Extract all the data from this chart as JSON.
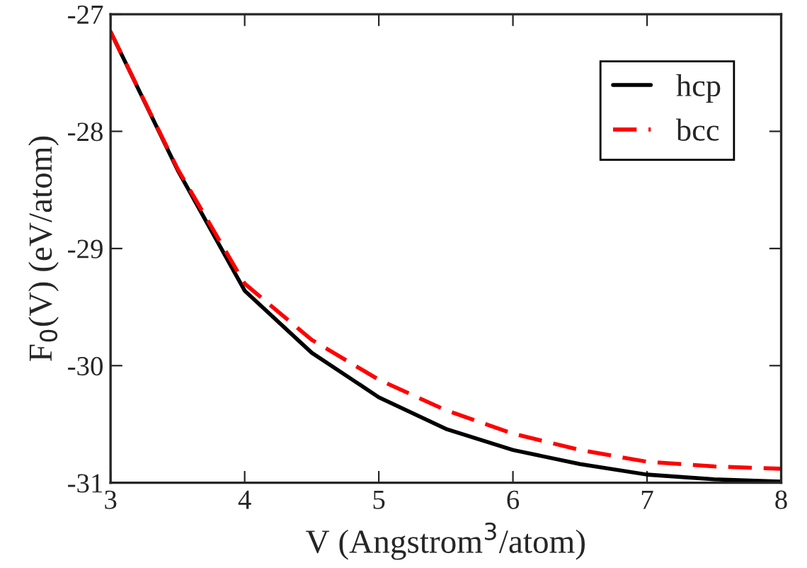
{
  "chart_data": {
    "type": "line",
    "xlabel": "V (Angstrom$^{3}$/atom)",
    "ylabel": "F$_{0}$(V) (eV/atom)",
    "x": [
      3,
      3.5,
      4,
      4.5,
      5,
      5.5,
      6,
      6.5,
      7,
      7.5,
      8
    ],
    "series": [
      {
        "name": "hcp",
        "color": "#000000",
        "line_style": "solid",
        "values": [
          -27.15,
          -28.33,
          -29.36,
          -29.89,
          -30.27,
          -30.54,
          -30.72,
          -30.84,
          -30.93,
          -30.97,
          -30.99
        ]
      },
      {
        "name": "bcc",
        "color": "#ff0000",
        "line_style": "dashed",
        "values": [
          -27.15,
          -28.32,
          -29.3,
          -29.78,
          -30.12,
          -30.38,
          -30.58,
          -30.72,
          -30.82,
          -30.86,
          -30.88
        ]
      }
    ],
    "xlim": [
      3,
      8
    ],
    "ylim": [
      -31,
      -27
    ],
    "xticks": [
      3,
      4,
      5,
      6,
      7,
      8
    ],
    "yticks": [
      -31,
      -30,
      -29,
      -28,
      -27
    ],
    "legend": "top right",
    "grid": false,
    "marker": "none"
  }
}
